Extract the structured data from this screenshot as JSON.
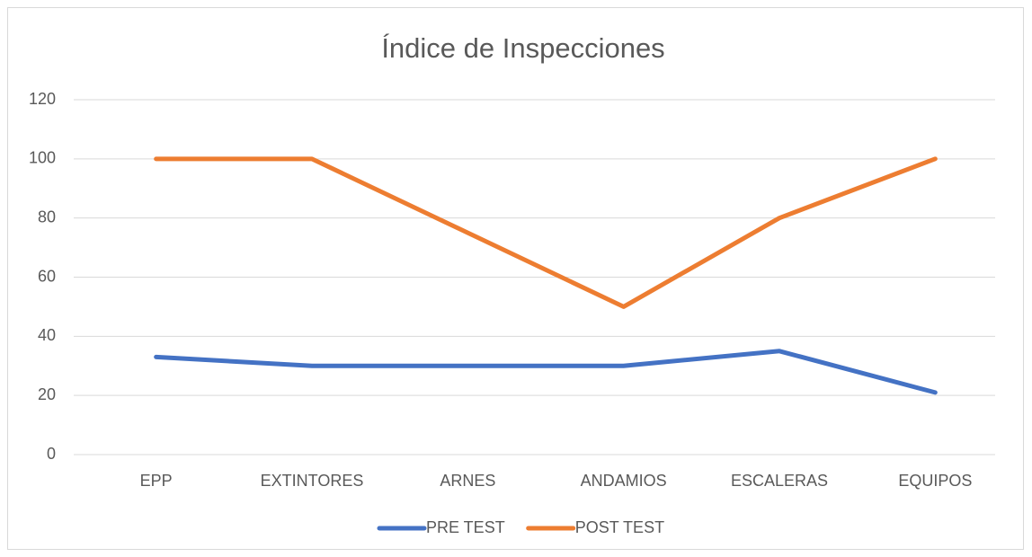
{
  "chart_data": {
    "type": "line",
    "title": "Índice de Inspecciones",
    "categories": [
      "EPP",
      "EXTINTORES",
      "ARNES",
      "ANDAMIOS",
      "ESCALERAS",
      "EQUIPOS"
    ],
    "series": [
      {
        "name": "PRE TEST",
        "color": "#4472c4",
        "values": [
          33,
          30,
          30,
          30,
          35,
          21
        ]
      },
      {
        "name": "POST TEST",
        "color": "#ed7d31",
        "values": [
          100,
          100,
          75,
          50,
          80,
          100
        ]
      }
    ],
    "ylim": [
      0,
      120
    ],
    "yticks": [
      0,
      20,
      40,
      60,
      80,
      100,
      120
    ],
    "grid": true,
    "legend": "bottom"
  }
}
